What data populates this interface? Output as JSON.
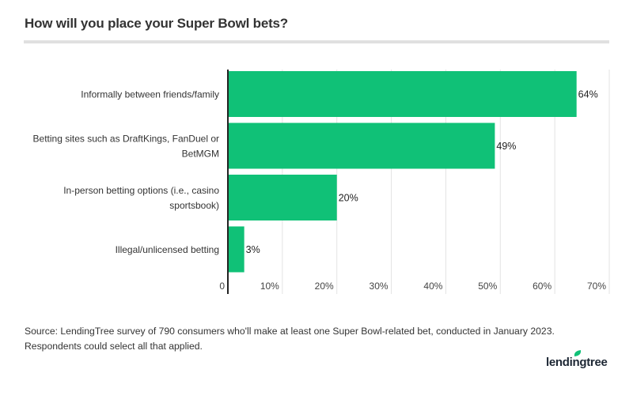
{
  "title": "How will you place your Super Bowl bets?",
  "footnote": [
    "Source: LendingTree survey of 790 consumers who'll make at least one Super Bowl-related bet, conducted in January 2023.",
    "Respondents could select all that applied."
  ],
  "logo": "lendingtree",
  "chart_data": {
    "type": "bar",
    "orientation": "horizontal",
    "categories": [
      [
        "Informally between friends/family"
      ],
      [
        "Betting sites such as DraftKings, FanDuel or",
        "BetMGM"
      ],
      [
        "In-person betting options (i.e., casino",
        "sportsbook)"
      ],
      [
        "Illegal/unlicensed betting"
      ]
    ],
    "values": [
      64,
      49,
      20,
      3
    ],
    "data_labels": [
      "64%",
      "49%",
      "20%",
      "3%"
    ],
    "xlim": [
      0,
      70
    ],
    "xticks": [
      0,
      10,
      20,
      30,
      40,
      50,
      60,
      70
    ],
    "xtick_labels": [
      "0",
      "10%",
      "20%",
      "30%",
      "40%",
      "50%",
      "60%",
      "70%"
    ],
    "grid": true,
    "bar_color": "#10c177"
  }
}
